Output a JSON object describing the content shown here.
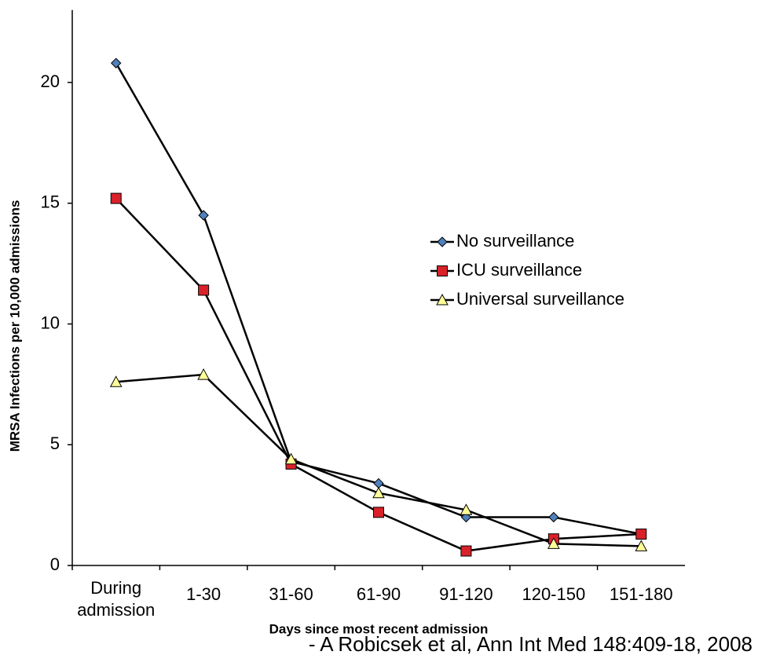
{
  "chart_data": {
    "type": "line",
    "xlabel": "Days since most recent admission",
    "ylabel": "MRSA Infections per 10,000 admissions",
    "annotation": "- A Robicsek et al, Ann Int Med 148:409-18, 2008",
    "categories": [
      "During admission",
      "1-30",
      "31-60",
      "61-90",
      "91-120",
      "120-150",
      "151-180"
    ],
    "series": [
      {
        "name": "No surveillance",
        "color": "#4f81bd",
        "marker": "diamond",
        "values": [
          20.8,
          14.5,
          4.3,
          3.4,
          2.0,
          2.0,
          1.3
        ]
      },
      {
        "name": "ICU surveillance",
        "color": "#d9212a",
        "marker": "square",
        "values": [
          15.2,
          11.4,
          4.2,
          2.2,
          0.6,
          1.1,
          1.3
        ]
      },
      {
        "name": "Universal surveillance",
        "color": "#ffff99",
        "marker": "triangle",
        "values": [
          7.6,
          7.9,
          4.4,
          3.0,
          2.3,
          0.9,
          0.8
        ]
      }
    ],
    "ylim": [
      0,
      23
    ],
    "yticks": [
      0,
      5,
      10,
      15,
      20
    ],
    "grid": false,
    "legend": "right"
  }
}
